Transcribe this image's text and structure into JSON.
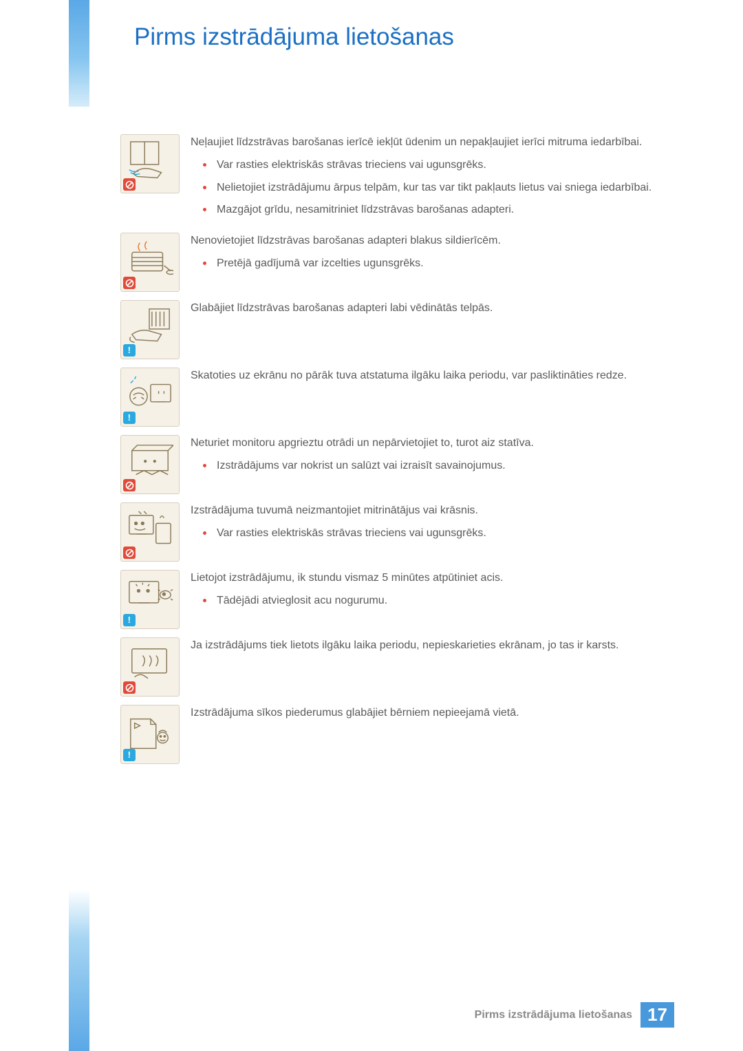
{
  "page": {
    "title": "Pirms izstrādājuma lietošanas",
    "footer_label": "Pirms izstrādājuma lietošanas",
    "page_number": "17"
  },
  "colors": {
    "heading": "#1b6fc4",
    "body_text": "#5a5a5a",
    "bullet": "#e04a3a",
    "badge_warn": "#e04a3a",
    "badge_info": "#2aa9e0",
    "icon_bg": "#f6f1e6",
    "icon_border": "#d8cdbf",
    "gradient_blue": "#5aa8e6",
    "footer_num_bg": "#4898dc"
  },
  "items": [
    {
      "badge": "warn",
      "picto": "water-adapter",
      "lead": "Neļaujiet līdzstrāvas barošanas ierīcē iekļūt ūdenim un nepakļaujiet ierīci mitruma iedarbībai.",
      "bullets": [
        "Var rasties elektriskās strāvas trieciens vai ugunsgrēks.",
        "Nelietojiet izstrādājumu ārpus telpām, kur tas var tikt pakļauts lietus vai sniega iedarbībai.",
        "Mazgājot grīdu, nesamitriniet līdzstrāvas barošanas adapteri."
      ]
    },
    {
      "badge": "warn",
      "picto": "heater",
      "lead": "Nenovietojiet līdzstrāvas barošanas adapteri blakus sildierīcēm.",
      "bullets": [
        "Pretējā gadījumā var izcelties ugunsgrēks."
      ]
    },
    {
      "badge": "info",
      "picto": "vent-adapter",
      "lead": "Glabājiet līdzstrāvas barošanas adapteri labi vēdinātās telpās.",
      "bullets": []
    },
    {
      "badge": "info",
      "picto": "eye-close",
      "lead": "Skatoties uz ekrānu no pārāk tuva atstatuma ilgāku laika periodu, var pasliktināties redze.",
      "bullets": []
    },
    {
      "badge": "warn",
      "picto": "upside-down",
      "lead": "Neturiet monitoru apgrieztu otrādi un nepārvietojiet to, turot aiz statīva.",
      "bullets": [
        "Izstrādājums var nokrist un salūzt vai izraisīt savainojumus."
      ]
    },
    {
      "badge": "warn",
      "picto": "humidifier",
      "lead": "Izstrādājuma tuvumā neizmantojiet mitrinātājus vai krāsnis.",
      "bullets": [
        "Var rasties elektriskās strāvas trieciens vai ugunsgrēks."
      ]
    },
    {
      "badge": "info",
      "picto": "rest-eyes",
      "lead": "Lietojot izstrādājumu, ik stundu vismaz 5 minūtes atpūtiniet acis.",
      "bullets": [
        "Tādējādi atvieglosit acu nogurumu."
      ]
    },
    {
      "badge": "warn",
      "picto": "hot-screen",
      "lead": "Ja izstrādājums tiek lietots ilgāku laika periodu, nepieskarieties ekrānam, jo tas ir karsts.",
      "bullets": []
    },
    {
      "badge": "info",
      "picto": "small-parts",
      "lead": "Izstrādājuma sīkos piederumus glabājiet bērniem nepieejamā vietā.",
      "bullets": []
    }
  ]
}
